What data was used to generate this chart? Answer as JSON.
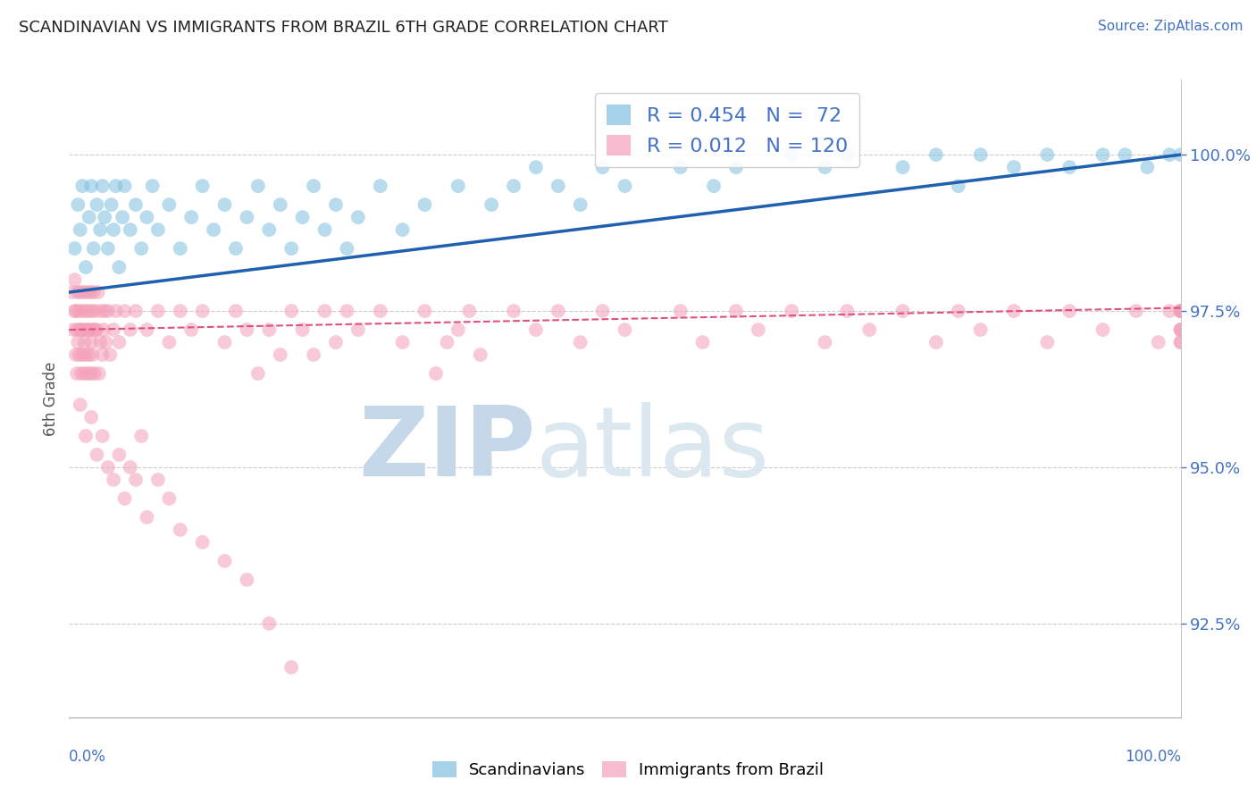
{
  "title": "SCANDINAVIAN VS IMMIGRANTS FROM BRAZIL 6TH GRADE CORRELATION CHART",
  "source": "Source: ZipAtlas.com",
  "ylabel": "6th Grade",
  "yticks": [
    92.5,
    95.0,
    97.5,
    100.0
  ],
  "ytick_labels": [
    "92.5%",
    "95.0%",
    "97.5%",
    "100.0%"
  ],
  "xmin": 0.0,
  "xmax": 100.0,
  "ymin": 91.0,
  "ymax": 101.2,
  "legend_blue_r": "R = 0.454",
  "legend_blue_n": "N =  72",
  "legend_pink_r": "R = 0.012",
  "legend_pink_n": "N = 120",
  "legend_label_blue": "Scandinavians",
  "legend_label_pink": "Immigrants from Brazil",
  "blue_color": "#7fbfdf",
  "pink_color": "#f4a0b8",
  "blue_line_color": "#2060b0",
  "pink_line_color": "#e05080",
  "blue_trend_x0": 0.0,
  "blue_trend_x1": 100.0,
  "blue_trend_y0": 97.8,
  "blue_trend_y1": 100.0,
  "pink_trend_x0": 0.0,
  "pink_trend_x1": 100.0,
  "pink_trend_y0": 97.2,
  "pink_trend_y1": 97.55,
  "blue_scatter_x": [
    0.5,
    0.8,
    1.0,
    1.2,
    1.5,
    1.8,
    2.0,
    2.2,
    2.5,
    2.8,
    3.0,
    3.2,
    3.5,
    3.8,
    4.0,
    4.2,
    4.5,
    4.8,
    5.0,
    5.5,
    6.0,
    6.5,
    7.0,
    7.5,
    8.0,
    9.0,
    10.0,
    11.0,
    12.0,
    13.0,
    14.0,
    15.0,
    16.0,
    17.0,
    18.0,
    19.0,
    20.0,
    21.0,
    22.0,
    23.0,
    24.0,
    25.0,
    26.0,
    28.0,
    30.0,
    32.0,
    35.0,
    38.0,
    40.0,
    42.0,
    44.0,
    46.0,
    48.0,
    50.0,
    55.0,
    58.0,
    60.0,
    65.0,
    68.0,
    70.0,
    75.0,
    78.0,
    80.0,
    82.0,
    85.0,
    88.0,
    90.0,
    93.0,
    95.0,
    97.0,
    99.0,
    100.0
  ],
  "blue_scatter_y": [
    98.5,
    99.2,
    98.8,
    99.5,
    98.2,
    99.0,
    99.5,
    98.5,
    99.2,
    98.8,
    99.5,
    99.0,
    98.5,
    99.2,
    98.8,
    99.5,
    98.2,
    99.0,
    99.5,
    98.8,
    99.2,
    98.5,
    99.0,
    99.5,
    98.8,
    99.2,
    98.5,
    99.0,
    99.5,
    98.8,
    99.2,
    98.5,
    99.0,
    99.5,
    98.8,
    99.2,
    98.5,
    99.0,
    99.5,
    98.8,
    99.2,
    98.5,
    99.0,
    99.5,
    98.8,
    99.2,
    99.5,
    99.2,
    99.5,
    99.8,
    99.5,
    99.2,
    99.8,
    99.5,
    99.8,
    99.5,
    99.8,
    100.0,
    99.8,
    100.0,
    99.8,
    100.0,
    99.5,
    100.0,
    99.8,
    100.0,
    99.8,
    100.0,
    100.0,
    99.8,
    100.0,
    100.0
  ],
  "pink_scatter_x": [
    0.3,
    0.4,
    0.5,
    0.5,
    0.6,
    0.6,
    0.7,
    0.7,
    0.8,
    0.8,
    0.9,
    0.9,
    1.0,
    1.0,
    1.1,
    1.1,
    1.2,
    1.2,
    1.3,
    1.3,
    1.4,
    1.4,
    1.5,
    1.5,
    1.6,
    1.6,
    1.7,
    1.7,
    1.8,
    1.8,
    1.9,
    1.9,
    2.0,
    2.0,
    2.1,
    2.1,
    2.2,
    2.2,
    2.3,
    2.3,
    2.4,
    2.5,
    2.6,
    2.7,
    2.8,
    2.9,
    3.0,
    3.1,
    3.2,
    3.3,
    3.5,
    3.7,
    4.0,
    4.2,
    4.5,
    5.0,
    5.5,
    6.0,
    7.0,
    8.0,
    9.0,
    10.0,
    11.0,
    12.0,
    14.0,
    15.0,
    16.0,
    17.0,
    18.0,
    19.0,
    20.0,
    21.0,
    22.0,
    23.0,
    24.0,
    25.0,
    26.0,
    28.0,
    30.0,
    32.0,
    33.0,
    34.0,
    35.0,
    36.0,
    37.0,
    40.0,
    42.0,
    44.0,
    46.0,
    48.0,
    50.0,
    55.0,
    57.0,
    60.0,
    62.0,
    65.0,
    68.0,
    70.0,
    72.0,
    75.0,
    78.0,
    80.0,
    82.0,
    85.0,
    88.0,
    90.0,
    93.0,
    96.0,
    98.0,
    99.0,
    100.0,
    100.0,
    100.0,
    100.0,
    100.0,
    100.0,
    100.0,
    100.0,
    100.0,
    100.0
  ],
  "pink_scatter_y": [
    97.8,
    97.2,
    98.0,
    97.5,
    96.8,
    97.5,
    97.2,
    96.5,
    97.8,
    97.0,
    97.5,
    96.8,
    97.2,
    97.8,
    96.5,
    97.2,
    97.5,
    96.8,
    97.2,
    97.8,
    96.5,
    97.0,
    97.5,
    96.8,
    97.2,
    97.8,
    96.5,
    97.2,
    97.5,
    96.8,
    97.2,
    97.8,
    96.5,
    97.0,
    97.5,
    96.8,
    97.2,
    97.8,
    96.5,
    97.2,
    97.5,
    97.2,
    97.8,
    96.5,
    97.0,
    97.5,
    96.8,
    97.2,
    97.5,
    97.0,
    97.5,
    96.8,
    97.2,
    97.5,
    97.0,
    97.5,
    97.2,
    97.5,
    97.2,
    97.5,
    97.0,
    97.5,
    97.2,
    97.5,
    97.0,
    97.5,
    97.2,
    96.5,
    97.2,
    96.8,
    97.5,
    97.2,
    96.8,
    97.5,
    97.0,
    97.5,
    97.2,
    97.5,
    97.0,
    97.5,
    96.5,
    97.0,
    97.2,
    97.5,
    96.8,
    97.5,
    97.2,
    97.5,
    97.0,
    97.5,
    97.2,
    97.5,
    97.0,
    97.5,
    97.2,
    97.5,
    97.0,
    97.5,
    97.2,
    97.5,
    97.0,
    97.5,
    97.2,
    97.5,
    97.0,
    97.5,
    97.2,
    97.5,
    97.0,
    97.5,
    97.2,
    97.5,
    97.0,
    97.5,
    97.2,
    97.5,
    97.0,
    97.5,
    97.2,
    97.5
  ],
  "pink_low_x": [
    1.0,
    1.5,
    2.0,
    2.5,
    3.0,
    3.5,
    4.0,
    4.5,
    5.0,
    5.5,
    6.0,
    6.5,
    7.0,
    8.0,
    9.0,
    10.0,
    12.0,
    14.0,
    16.0,
    18.0,
    20.0
  ],
  "pink_low_y": [
    96.0,
    95.5,
    95.8,
    95.2,
    95.5,
    95.0,
    94.8,
    95.2,
    94.5,
    95.0,
    94.8,
    95.5,
    94.2,
    94.8,
    94.5,
    94.0,
    93.8,
    93.5,
    93.2,
    92.5,
    91.8
  ],
  "grid_color": "#cccccc",
  "title_color": "#333333",
  "axis_color": "#4472c4",
  "watermark_color_zip": "#c5d8ea",
  "watermark_color_atlas": "#dce8f0"
}
